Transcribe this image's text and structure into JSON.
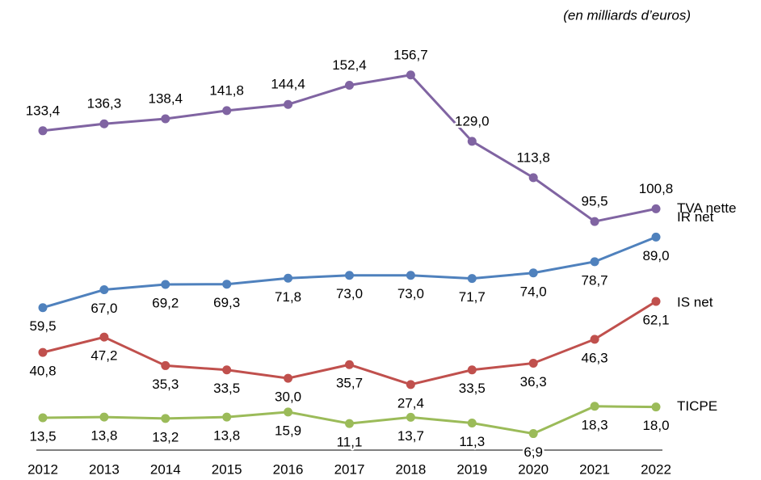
{
  "chart_data": {
    "type": "line",
    "annotation": "(en milliards d’euros)",
    "categories": [
      "2012",
      "2013",
      "2014",
      "2015",
      "2016",
      "2017",
      "2018",
      "2019",
      "2020",
      "2021",
      "2022"
    ],
    "ylim": [
      0,
      160
    ],
    "series": [
      {
        "name": "TVA nette",
        "color": "#8064a2",
        "values": [
          133.4,
          136.3,
          138.4,
          141.8,
          144.4,
          152.4,
          156.7,
          129.0,
          113.8,
          95.5,
          100.8
        ],
        "value_labels": [
          "133,4",
          "136,3",
          "138,4",
          "141,8",
          "144,4",
          "152,4",
          "156,7",
          "129,0",
          "113,8",
          "95,5",
          "100,8"
        ]
      },
      {
        "name": "IR net",
        "color": "#4f81bd",
        "values": [
          59.5,
          67.0,
          69.2,
          69.3,
          71.8,
          73.0,
          73.0,
          71.7,
          74.0,
          78.7,
          89.0
        ],
        "value_labels": [
          "59,5",
          "67,0",
          "69,2",
          "69,3",
          "71,8",
          "73,0",
          "73,0",
          "71,7",
          "74,0",
          "78,7",
          "89,0"
        ]
      },
      {
        "name": "IS net",
        "color": "#c0504d",
        "values": [
          40.8,
          47.2,
          35.3,
          33.5,
          30.0,
          35.7,
          27.4,
          33.5,
          36.3,
          46.3,
          62.1
        ],
        "value_labels": [
          "40,8",
          "47,2",
          "35,3",
          "33,5",
          "30,0",
          "35,7",
          "27,4",
          "33,5",
          "36,3",
          "46,3",
          "62,1"
        ]
      },
      {
        "name": "TICPE",
        "color": "#9bbb59",
        "values": [
          13.5,
          13.8,
          13.2,
          13.8,
          15.9,
          11.1,
          13.7,
          11.3,
          6.9,
          18.3,
          18.0
        ],
        "value_labels": [
          "13,5",
          "13,8",
          "13,2",
          "13,8",
          "15,9",
          "11,1",
          "13,7",
          "11,3",
          "6,9",
          "18,3",
          "18,0"
        ]
      }
    ]
  }
}
